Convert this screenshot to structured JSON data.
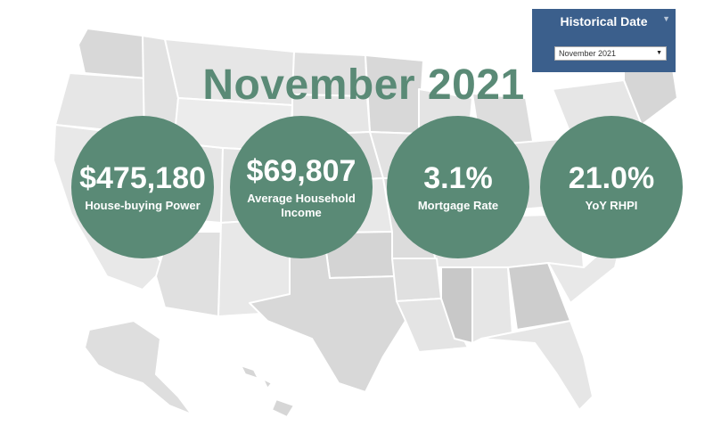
{
  "title": "November 2021",
  "metrics": [
    {
      "value": "$475,180",
      "label": "House-buying Power"
    },
    {
      "value": "$69,807",
      "label": "Average Household Income"
    },
    {
      "value": "3.1%",
      "label": "Mortgage Rate"
    },
    {
      "value": "21.0%",
      "label": "YoY RHPI"
    }
  ],
  "filter": {
    "title": "Historical Date",
    "selected": "November 2021",
    "caret_icon": "dropdown-arrow-icon",
    "menu_icon": "chevron-down-icon"
  },
  "colors": {
    "accent": "#5a8a76",
    "filter_bg": "#3b5f8c",
    "map_light": "#ececec",
    "map_dark": "#d6d6d6"
  }
}
